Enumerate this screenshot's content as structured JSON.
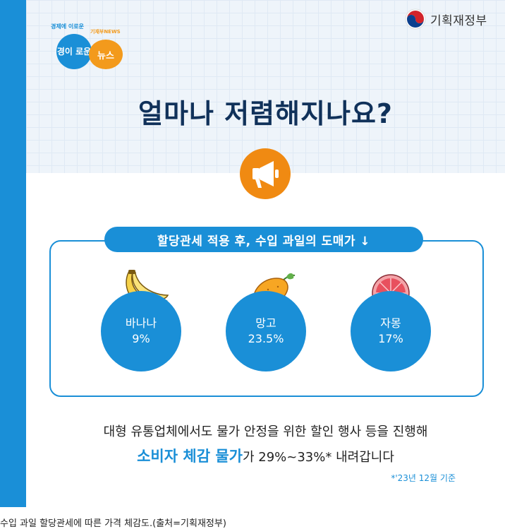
{
  "ministry": {
    "name": "기획재정부"
  },
  "badge": {
    "top_left": "경제에 이로운",
    "top_right": "기재부NEWS",
    "left_word": "경이 로운",
    "right_word": "뉴스"
  },
  "headline": "얼마나 저렴해지나요?",
  "pill": "할당관세 적용 후, 수입 과일의 도매가 ↓",
  "fruits": [
    {
      "name": "바나나",
      "value": "9%"
    },
    {
      "name": "망고",
      "value": "23.5%"
    },
    {
      "name": "자몽",
      "value": "17%"
    }
  ],
  "bottom": {
    "line1": "대형 유통업체에서도 물가 안정을 위한 할인 행사 등을 진행해",
    "highlight": "소비자 체감 물가",
    "line2_rest": "가 29%~33%* 내려갑니다"
  },
  "footnote": "*'23년 12월 기준",
  "caption": "수입 과일 할당관세에 따른 가격 체감도.(출처=기획재정부)",
  "colors": {
    "accent": "#1a8fd7",
    "orange": "#f08a12",
    "navy": "#10315a"
  }
}
